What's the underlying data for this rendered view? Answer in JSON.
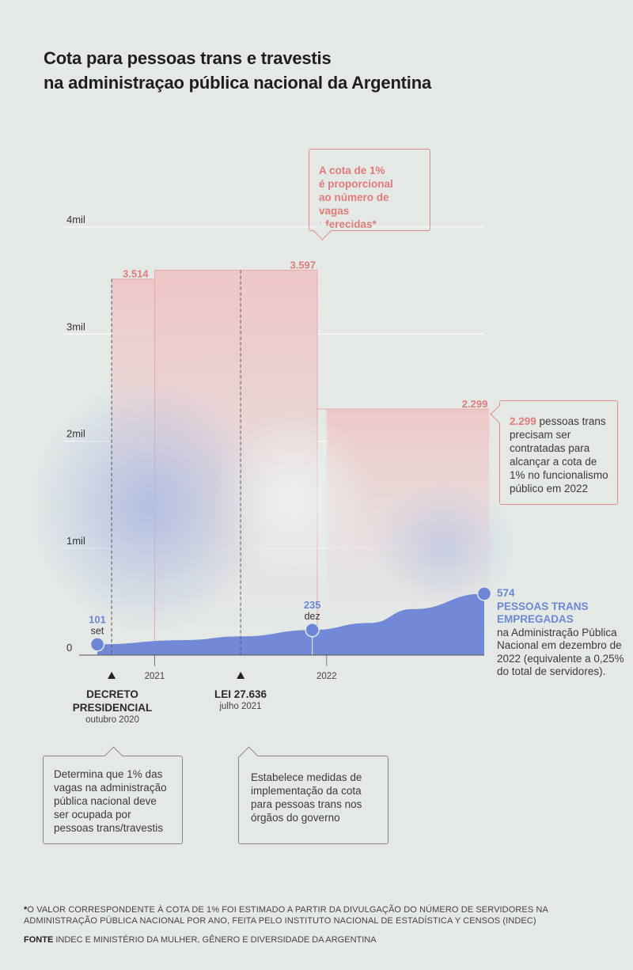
{
  "title_line1": "Cota para pessoas trans e travestis",
  "title_line2": "na administraçao pública nacional da Argentina",
  "chart_data": {
    "type": "area",
    "yticks": [
      {
        "value": 0,
        "label": "0"
      },
      {
        "value": 1000,
        "label": "1mil"
      },
      {
        "value": 2000,
        "label": "2mil"
      },
      {
        "value": 3000,
        "label": "3mil"
      },
      {
        "value": 4000,
        "label": "4mil"
      }
    ],
    "ylim": [
      0,
      4000
    ],
    "xlim": [
      "2020-09",
      "2022-12"
    ],
    "xticks": [
      {
        "x": "2021-01",
        "label": "2021"
      },
      {
        "x": "2022-01",
        "label": "2022"
      }
    ],
    "series": [
      {
        "values": [
          {
            "x": "2020-09",
            "y": 101
          },
          {
            "x": "2021-03",
            "y": 140
          },
          {
            "x": "2021-07",
            "y": 175
          },
          {
            "x": "2021-12",
            "y": 235
          },
          {
            "x": "2022-04",
            "y": 300
          },
          {
            "x": "2022-07",
            "y": 430
          },
          {
            "x": "2022-12",
            "y": 574
          }
        ]
      },
      {
        "values": [
          {
            "x": "2020-10",
            "x_end": "2021-12",
            "y": 3514
          },
          {
            "x": "2021-01",
            "x_end": "2021-12",
            "y": 3597
          },
          {
            "x": "2022-01",
            "x_end": "2022-12",
            "y": 2299
          }
        ]
      }
    ],
    "points": [
      {
        "x": "2020-09",
        "y": 101,
        "label": "101",
        "sublabel": "set"
      },
      {
        "x": "2021-12",
        "y": 235,
        "label": "235",
        "sublabel": "dez"
      },
      {
        "x": "2022-12",
        "y": 574
      }
    ],
    "quota_labels": [
      {
        "x": "2020-10",
        "y": 3514,
        "label": "3.514"
      },
      {
        "x": "2021-12",
        "y": 3597,
        "label": "3.597"
      },
      {
        "x": "2022-12",
        "y": 2299,
        "label": "2.299"
      }
    ],
    "events": [
      {
        "x": "2020-10",
        "name_line1": "DECRETO",
        "name_line2": "PRESIDENCIAL",
        "date": "outubro 2020"
      },
      {
        "x": "2021-07",
        "name_line1": "LEI 27.636",
        "name_line2": "",
        "date": "julho 2021"
      }
    ]
  },
  "quota_note": {
    "line1": "A cota de 1%",
    "line2": "é proporcional",
    "line3": "ao número de vagas",
    "line4": "oferecidas*"
  },
  "hires_note": {
    "num": "2.299",
    "text1": " pessoas trans",
    "line2": "precisam ser",
    "line3": "contratadas para",
    "line4": "alcançar a cota de",
    "line5": "1% no funcionalismo",
    "line6": "público em 2022"
  },
  "employed": {
    "num": "574",
    "line1": "PESSOAS TRANS",
    "line2": "EMPREGADAS",
    "line3": "na Administração Pública",
    "line4": "Nacional em dezembro de",
    "line5": "2022 (equivalente a 0,25%",
    "line6": "do total de servidores)."
  },
  "decree_note": {
    "line1": "Determina que 1% das",
    "line2": "vagas na administração",
    "line3": "pública nacional deve",
    "line4": "ser ocupada por",
    "line5": "pessoas trans/travestis"
  },
  "law_note": {
    "line1": "Estabelece medidas de",
    "line2": "implementação da cota",
    "line3": "para pessoas trans nos",
    "line4": "órgãos do governo"
  },
  "footnote": {
    "mark": "*",
    "line1": "O VALOR CORRESPONDENTE À COTA DE 1% FOI ESTIMADO A PARTIR DA DIVULGAÇÃO DO NÚMERO DE SERVIDORES NA",
    "line2": "ADMINISTRAÇÃO PÚBLICA NACIONAL POR ANO, FEITA PELO INSTITUTO NACIONAL DE ESTADÍSTICA Y CENSOS (INDEC)"
  },
  "source": {
    "label": "FONTE",
    "text": " INDEC E MINISTÉRIO DA MULHER, GÊNERO E DIVERSIDADE DA ARGENTINA"
  },
  "colors": {
    "background": "#e4e9e6",
    "quota": "#e07b7a",
    "employed": "#6c87d6",
    "employed_fill": "#7189d6",
    "text": "#2f2f2f"
  }
}
